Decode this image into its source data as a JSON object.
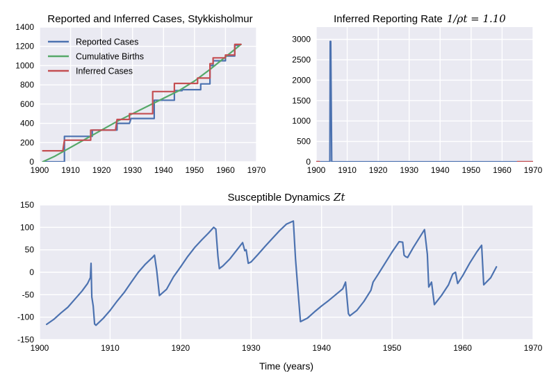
{
  "chart_data": [
    {
      "id": "top-left",
      "type": "line",
      "title": "Reported and Inferred Cases, Stykkisholmur",
      "xlim": [
        1900,
        1970
      ],
      "ylim": [
        0,
        1400
      ],
      "xticks": [
        1900,
        1910,
        1920,
        1930,
        1940,
        1950,
        1960,
        1970
      ],
      "yticks": [
        0,
        200,
        400,
        600,
        800,
        1000,
        1200,
        1400
      ],
      "grid": true,
      "legend": "top-left",
      "series": [
        {
          "name": "Reported Cases",
          "color": "#4c72b0",
          "x": [
            1901,
            1908,
            1908,
            1917,
            1917,
            1925,
            1925,
            1929,
            1929.5,
            1937,
            1937,
            1943.5,
            1943.5,
            1946,
            1946,
            1952,
            1952,
            1955,
            1955,
            1956,
            1956,
            1960,
            1960,
            1963,
            1963,
            1964.5
          ],
          "y": [
            0,
            0,
            265,
            265,
            330,
            330,
            400,
            400,
            450,
            450,
            640,
            640,
            740,
            740,
            750,
            750,
            810,
            810,
            1000,
            1000,
            1050,
            1050,
            1100,
            1100,
            1210,
            1210
          ]
        },
        {
          "name": "Cumulative Births",
          "color": "#55a868",
          "x": [
            1901,
            1905,
            1910,
            1915,
            1920,
            1925,
            1930,
            1935,
            1940,
            1945,
            1950,
            1955,
            1960,
            1965
          ],
          "y": [
            0,
            60,
            150,
            240,
            330,
            420,
            500,
            580,
            660,
            740,
            840,
            960,
            1090,
            1220
          ]
        },
        {
          "name": "Inferred Cases",
          "color": "#c44e52",
          "x": [
            1901,
            1907.5,
            1908,
            1916.5,
            1916.5,
            1924.5,
            1925,
            1929,
            1929,
            1936.5,
            1936.5,
            1943.5,
            1943.5,
            1951,
            1951,
            1955,
            1955,
            1956,
            1956,
            1960,
            1960,
            1963,
            1963,
            1965
          ],
          "y": [
            115,
            115,
            225,
            225,
            330,
            330,
            440,
            440,
            500,
            500,
            730,
            730,
            815,
            815,
            870,
            870,
            1020,
            1020,
            1080,
            1080,
            1110,
            1110,
            1220,
            1220
          ]
        }
      ]
    },
    {
      "id": "top-right",
      "type": "line",
      "title": "Inferred Reporting Rate",
      "title_math": "1/ρt = 1.10",
      "xlim": [
        1900,
        1970
      ],
      "ylim": [
        0,
        3300
      ],
      "xticks": [
        1900,
        1910,
        1920,
        1930,
        1940,
        1950,
        1960,
        1970
      ],
      "yticks": [
        0,
        500,
        1000,
        1500,
        2000,
        2500,
        3000
      ],
      "grid": true,
      "series": [
        {
          "color": "#4c72b0",
          "x": [
            1900,
            1904.4,
            1904.5,
            1904.7,
            1905,
            1965
          ],
          "y": [
            0,
            0,
            2950,
            2950,
            0,
            0
          ]
        },
        {
          "color": "#c44e52",
          "x": [
            1900,
            1901
          ],
          "y": [
            1.1,
            1.1
          ]
        },
        {
          "color": "#c44e52",
          "x": [
            1965,
            1970
          ],
          "y": [
            1.1,
            1.1
          ]
        }
      ]
    },
    {
      "id": "bottom",
      "type": "line",
      "title": "Susceptible Dynamics",
      "title_math": "Zt",
      "xlabel": "Time (years)",
      "xlim": [
        1900,
        1970
      ],
      "ylim": [
        -150,
        150
      ],
      "xticks": [
        1900,
        1910,
        1920,
        1930,
        1940,
        1950,
        1960,
        1970
      ],
      "yticks": [
        -150,
        -100,
        -50,
        0,
        50,
        100,
        150
      ],
      "grid": true,
      "series": [
        {
          "color": "#4c72b0",
          "x": [
            1901,
            1902,
            1903,
            1904,
            1905,
            1906,
            1906.8,
            1907.2,
            1907.3,
            1907.4,
            1907.6,
            1907.8,
            1908,
            1909,
            1910,
            1911,
            1912,
            1913,
            1914,
            1915,
            1916,
            1916.3,
            1916.6,
            1917,
            1918,
            1919,
            1920,
            1921,
            1922,
            1923,
            1924,
            1924.7,
            1925,
            1925.3,
            1925.5,
            1926,
            1927,
            1928,
            1928.8,
            1929.1,
            1929.3,
            1929.6,
            1930,
            1931,
            1932,
            1933,
            1934,
            1935,
            1936,
            1936.3,
            1936.6,
            1937,
            1938,
            1939,
            1940,
            1941,
            1942,
            1943,
            1943.4,
            1943.8,
            1944,
            1945,
            1946,
            1947,
            1947.3,
            1948,
            1949,
            1950,
            1951,
            1951.5,
            1951.7,
            1951.9,
            1952.2,
            1953,
            1954,
            1954.6,
            1955,
            1955.2,
            1955.6,
            1956,
            1957,
            1958,
            1958.6,
            1959,
            1959.3,
            1960,
            1961,
            1962,
            1962.7,
            1963,
            1964,
            1964.8
          ],
          "y": [
            -116,
            -105,
            -91,
            -78,
            -60,
            -42,
            -25,
            -12,
            20,
            -55,
            -75,
            -115,
            -118,
            -103,
            -85,
            -64,
            -45,
            -22,
            0,
            18,
            33,
            38,
            5,
            -52,
            -38,
            -10,
            12,
            35,
            55,
            72,
            88,
            100,
            96,
            35,
            8,
            14,
            30,
            50,
            66,
            48,
            50,
            20,
            23,
            40,
            58,
            75,
            92,
            107,
            114,
            30,
            -30,
            -110,
            -102,
            -88,
            -75,
            -63,
            -50,
            -37,
            -22,
            -92,
            -97,
            -85,
            -65,
            -40,
            -22,
            -5,
            20,
            45,
            68,
            67,
            38,
            35,
            33,
            55,
            80,
            95,
            40,
            -33,
            -22,
            -72,
            -52,
            -28,
            -4,
            0,
            -25,
            -8,
            20,
            45,
            60,
            -28,
            -12,
            12
          ]
        }
      ]
    }
  ]
}
